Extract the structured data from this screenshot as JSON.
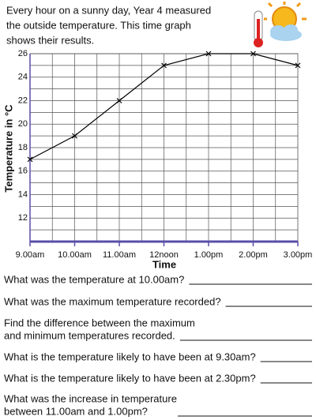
{
  "intro": {
    "lines": [
      "Every hour on a sunny day, Year 4 measured",
      "the outside temperature. This time graph",
      "shows their results."
    ]
  },
  "chart_data": {
    "type": "line",
    "x_label": "Time",
    "y_label": "Temperature in °C",
    "categories": [
      "9.00am",
      "10.00am",
      "11.00am",
      "12noon",
      "1.00pm",
      "2.00pm",
      "3.00pm"
    ],
    "values": [
      17,
      19,
      22,
      25,
      26,
      26,
      25
    ],
    "color": "#000000",
    "ylim": [
      10,
      26
    ],
    "yticks": [
      12,
      14,
      16,
      18,
      20,
      22,
      24,
      26
    ],
    "minor_yticks": [
      11,
      13,
      15,
      17,
      19,
      21,
      23,
      25
    ],
    "grid": true,
    "grid_color": "#555555",
    "axis_color": "#5a4fa8"
  },
  "questions": [
    {
      "lines": [
        "What was the temperature at 10.00am?"
      ]
    },
    {
      "lines": [
        "What was the maximum temperature recorded?"
      ]
    },
    {
      "lines": [
        "Find the difference between the maximum",
        "and minimum temperatures recorded."
      ]
    },
    {
      "lines": [
        "What is the temperature likely to have been at 9.30am?"
      ]
    },
    {
      "lines": [
        "What is the temperature likely to have been at 2.30pm?"
      ]
    },
    {
      "lines": [
        "What was the increase in temperature",
        "between 11.00am and 1.00pm?"
      ]
    }
  ]
}
